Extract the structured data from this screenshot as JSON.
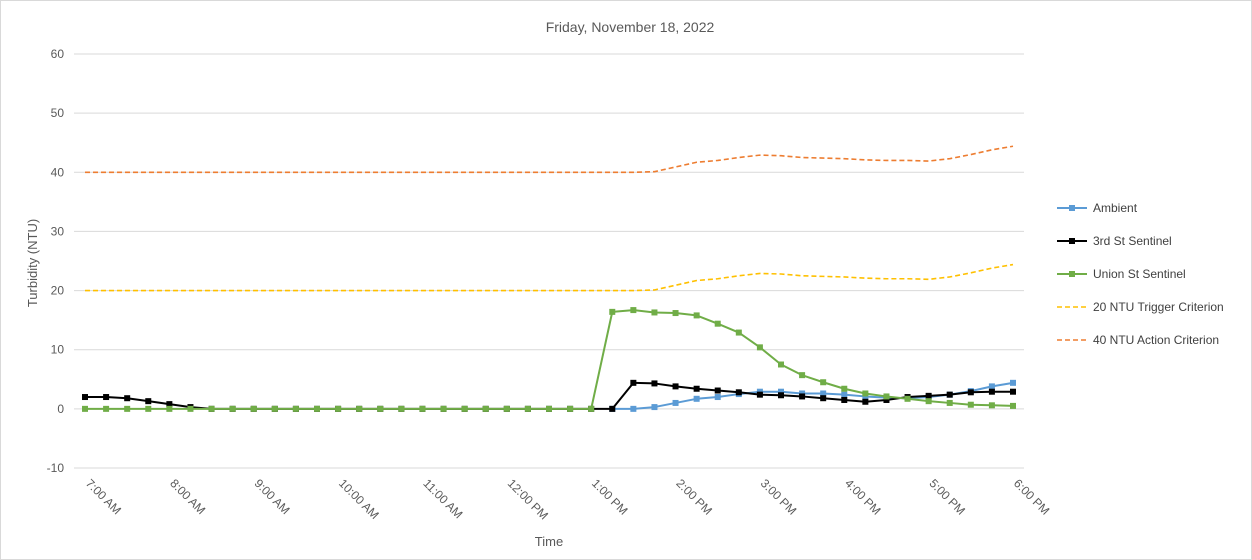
{
  "chart_data": {
    "type": "line",
    "title": "Friday, November 18, 2022",
    "xlabel": "Time",
    "ylabel": "Turbidity (NTU)",
    "ylim": [
      -10,
      60
    ],
    "yticks": [
      -10,
      0,
      10,
      20,
      30,
      40,
      50,
      60
    ],
    "grid": "horizontal",
    "legend_position": "right",
    "x_tick_labels": [
      "7:00 AM",
      "8:00 AM",
      "9:00 AM",
      "10:00 AM",
      "11:00 AM",
      "12:00 PM",
      "1:00 PM",
      "2:00 PM",
      "3:00 PM",
      "4:00 PM",
      "5:00 PM",
      "6:00 PM"
    ],
    "x": [
      "7:00 AM",
      "7:15 AM",
      "7:30 AM",
      "7:45 AM",
      "8:00 AM",
      "8:15 AM",
      "8:30 AM",
      "8:45 AM",
      "9:00 AM",
      "9:15 AM",
      "9:30 AM",
      "9:45 AM",
      "10:00 AM",
      "10:15 AM",
      "10:30 AM",
      "10:45 AM",
      "11:00 AM",
      "11:15 AM",
      "11:30 AM",
      "11:45 AM",
      "12:00 PM",
      "12:15 PM",
      "12:30 PM",
      "12:45 PM",
      "1:00 PM",
      "1:15 PM",
      "1:30 PM",
      "1:45 PM",
      "2:00 PM",
      "2:15 PM",
      "2:30 PM",
      "2:45 PM",
      "3:00 PM",
      "3:15 PM",
      "3:30 PM",
      "3:45 PM",
      "4:00 PM",
      "4:15 PM",
      "4:30 PM",
      "4:45 PM",
      "5:00 PM",
      "5:15 PM",
      "5:30 PM",
      "5:45 PM",
      "6:00 PM"
    ],
    "series": [
      {
        "name": "Ambient",
        "color": "#5b9bd5",
        "style": "solid-square-markers",
        "values": [
          null,
          null,
          null,
          null,
          null,
          null,
          null,
          null,
          null,
          null,
          null,
          null,
          null,
          null,
          null,
          null,
          null,
          null,
          null,
          null,
          null,
          null,
          null,
          null,
          null,
          0,
          0,
          0.3,
          1,
          1.7,
          2,
          2.5,
          2.9,
          2.9,
          2.6,
          2.6,
          2.4,
          2.1,
          1.9,
          1.8,
          2,
          2.4,
          3,
          3.8,
          4.4
        ]
      },
      {
        "name": "3rd St Sentinel",
        "color": "#000000",
        "style": "solid-square-markers",
        "values": [
          2,
          2,
          1.8,
          1.3,
          0.8,
          0.3,
          0,
          0,
          0,
          0,
          0,
          0,
          0,
          0,
          0,
          0,
          0,
          0,
          0,
          0,
          0,
          0,
          0,
          0,
          0,
          0,
          4.4,
          4.3,
          3.8,
          3.4,
          3.1,
          2.8,
          2.4,
          2.3,
          2.1,
          1.8,
          1.5,
          1.2,
          1.5,
          2,
          2.2,
          2.4,
          2.8,
          2.9,
          2.9
        ]
      },
      {
        "name": "Union St Sentinel",
        "color": "#70ad47",
        "style": "solid-square-markers",
        "values": [
          0,
          0,
          0,
          0,
          0,
          0,
          0,
          0,
          0,
          0,
          0,
          0,
          0,
          0,
          0,
          0,
          0,
          0,
          0,
          0,
          0,
          0,
          0,
          0,
          0,
          16.4,
          16.7,
          16.3,
          16.2,
          15.8,
          14.4,
          12.9,
          10.4,
          7.5,
          5.7,
          4.5,
          3.4,
          2.6,
          2.1,
          1.7,
          1.3,
          1,
          0.7,
          0.6,
          0.5
        ]
      },
      {
        "name": "20 NTU Trigger Criterion",
        "color": "#ffc000",
        "style": "dashed",
        "values": [
          20,
          20,
          20,
          20,
          20,
          20,
          20,
          20,
          20,
          20,
          20,
          20,
          20,
          20,
          20,
          20,
          20,
          20,
          20,
          20,
          20,
          20,
          20,
          20,
          20,
          20,
          20,
          20.1,
          20.9,
          21.7,
          22,
          22.5,
          22.9,
          22.8,
          22.5,
          22.4,
          22.3,
          22.1,
          22,
          22,
          21.9,
          22.3,
          23,
          23.8,
          24.4
        ]
      },
      {
        "name": "40 NTU Action Criterion",
        "color": "#ed7d31",
        "style": "dashed",
        "values": [
          40,
          40,
          40,
          40,
          40,
          40,
          40,
          40,
          40,
          40,
          40,
          40,
          40,
          40,
          40,
          40,
          40,
          40,
          40,
          40,
          40,
          40,
          40,
          40,
          40,
          40,
          40,
          40.1,
          40.9,
          41.7,
          42,
          42.5,
          42.9,
          42.8,
          42.5,
          42.4,
          42.3,
          42.1,
          42,
          42,
          41.9,
          42.3,
          43,
          43.8,
          44.4
        ]
      }
    ]
  }
}
